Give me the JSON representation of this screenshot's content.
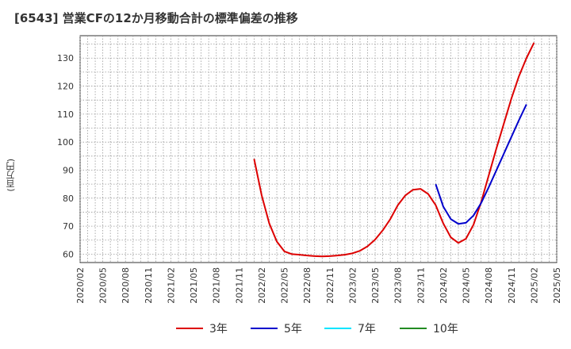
{
  "title": "[6543]  営業CFの12か月移動合計の標準偏差の推移",
  "ylabel": "(百万円)",
  "chart_data": {
    "type": "line",
    "title": "[6543]  営業CFの12か月移動合計の標準偏差の推移",
    "xlabel": "",
    "ylabel": "(百万円)",
    "ylim": [
      57,
      138
    ],
    "yticks": [
      60,
      70,
      80,
      90,
      100,
      110,
      120,
      130
    ],
    "xticks": [
      "2020/02",
      "2020/05",
      "2020/08",
      "2020/11",
      "2021/02",
      "2021/05",
      "2021/08",
      "2021/11",
      "2022/02",
      "2022/05",
      "2022/08",
      "2022/11",
      "2023/02",
      "2023/05",
      "2023/08",
      "2023/11",
      "2024/02",
      "2024/05",
      "2024/08",
      "2024/11",
      "2025/02",
      "2025/05"
    ],
    "grid": true,
    "legend_position": "bottom",
    "series": [
      {
        "name": "3年",
        "color": "#dd0000",
        "points": [
          [
            "2022/01",
            94
          ],
          [
            "2022/02",
            81
          ],
          [
            "2022/03",
            71
          ],
          [
            "2022/04",
            64.5
          ],
          [
            "2022/05",
            61
          ],
          [
            "2022/06",
            60
          ],
          [
            "2022/07",
            59.8
          ],
          [
            "2022/08",
            59.5
          ],
          [
            "2022/09",
            59.3
          ],
          [
            "2022/10",
            59.2
          ],
          [
            "2022/11",
            59.3
          ],
          [
            "2022/12",
            59.5
          ],
          [
            "2023/01",
            59.8
          ],
          [
            "2023/02",
            60.3
          ],
          [
            "2023/03",
            61.2
          ],
          [
            "2023/04",
            62.8
          ],
          [
            "2023/05",
            65.2
          ],
          [
            "2023/06",
            68.5
          ],
          [
            "2023/07",
            72.5
          ],
          [
            "2023/08",
            77.5
          ],
          [
            "2023/09",
            81
          ],
          [
            "2023/10",
            83
          ],
          [
            "2023/11",
            83.3
          ],
          [
            "2023/12",
            81.5
          ],
          [
            "2024/01",
            77.5
          ],
          [
            "2024/02",
            71
          ],
          [
            "2024/03",
            66
          ],
          [
            "2024/04",
            64
          ],
          [
            "2024/05",
            65.5
          ],
          [
            "2024/06",
            70.5
          ],
          [
            "2024/07",
            78.5
          ],
          [
            "2024/08",
            88
          ],
          [
            "2024/09",
            97.5
          ],
          [
            "2024/10",
            106.5
          ],
          [
            "2024/11",
            115.5
          ],
          [
            "2024/12",
            123.5
          ],
          [
            "2025/01",
            130
          ],
          [
            "2025/02",
            135.5
          ]
        ]
      },
      {
        "name": "5年",
        "color": "#0000cc",
        "points": [
          [
            "2024/01",
            85
          ],
          [
            "2024/02",
            77
          ],
          [
            "2024/03",
            72.5
          ],
          [
            "2024/04",
            70.8
          ],
          [
            "2024/05",
            71.2
          ],
          [
            "2024/06",
            73.8
          ],
          [
            "2024/07",
            78.2
          ],
          [
            "2024/08",
            83.8
          ],
          [
            "2024/09",
            89.8
          ],
          [
            "2024/10",
            95.8
          ],
          [
            "2024/11",
            101.8
          ],
          [
            "2024/12",
            107.8
          ],
          [
            "2025/01",
            113.5
          ]
        ]
      },
      {
        "name": "7年",
        "color": "#00e5ff",
        "points": []
      },
      {
        "name": "10年",
        "color": "#228b22",
        "points": []
      }
    ]
  }
}
